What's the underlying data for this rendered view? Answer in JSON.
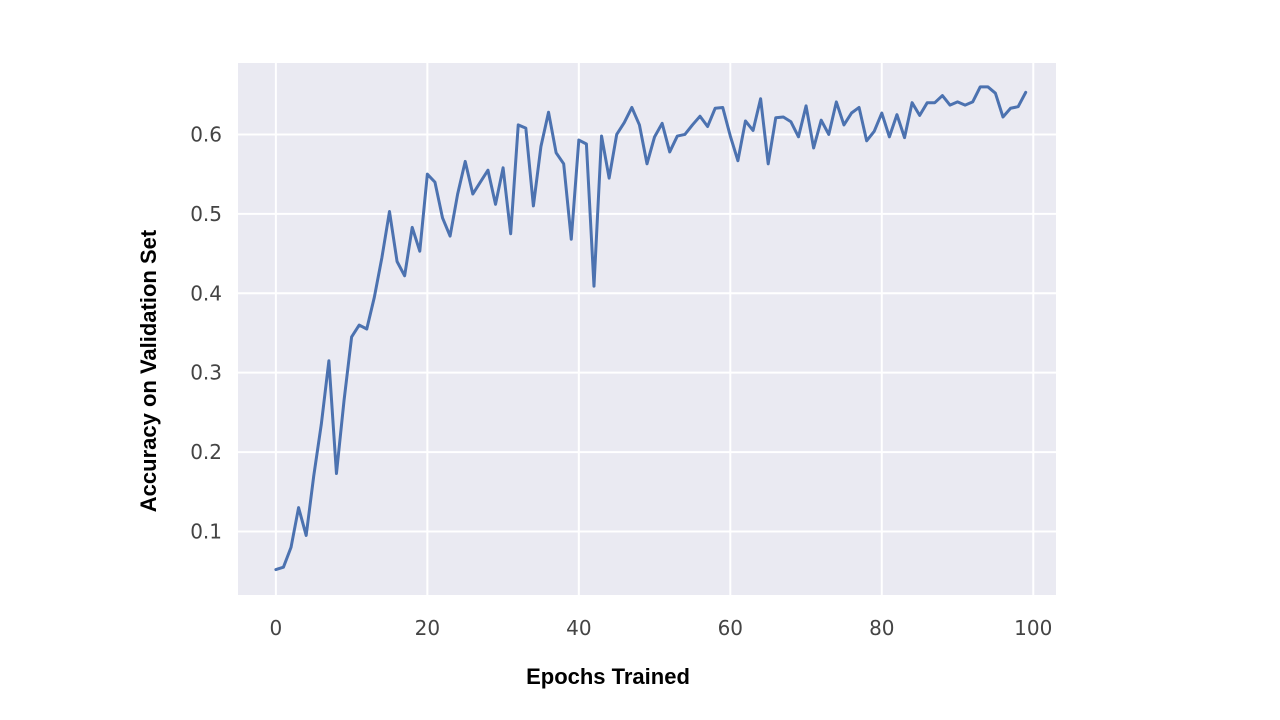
{
  "chart_data": {
    "type": "line",
    "title": "",
    "xlabel": "Epochs Trained",
    "ylabel": "Accuracy  on Validation Set",
    "xlim": [
      -5,
      103
    ],
    "ylim": [
      0.02,
      0.69
    ],
    "x_ticks": [
      0,
      20,
      40,
      60,
      80,
      100
    ],
    "x_tick_labels": [
      "0",
      "20",
      "40",
      "60",
      "80",
      "100"
    ],
    "y_ticks": [
      0.1,
      0.2,
      0.3,
      0.4,
      0.5,
      0.6
    ],
    "y_tick_labels": [
      "0.1",
      "0.2",
      "0.3",
      "0.4",
      "0.5",
      "0.6"
    ],
    "grid": true,
    "background_color": "#EAEAF2",
    "grid_color": "#FFFFFF",
    "line_color": "#4C72B0",
    "series": [
      {
        "values": [
          0.052,
          0.055,
          0.08,
          0.13,
          0.095,
          0.17,
          0.235,
          0.315,
          0.173,
          0.265,
          0.345,
          0.36,
          0.355,
          0.395,
          0.445,
          0.503,
          0.44,
          0.422,
          0.483,
          0.453,
          0.55,
          0.54,
          0.495,
          0.472,
          0.525,
          0.566,
          0.525,
          0.54,
          0.555,
          0.512,
          0.558,
          0.475,
          0.612,
          0.608,
          0.51,
          0.585,
          0.628,
          0.577,
          0.563,
          0.468,
          0.593,
          0.588,
          0.409,
          0.598,
          0.545,
          0.6,
          0.615,
          0.634,
          0.612,
          0.563,
          0.597,
          0.614,
          0.578,
          0.598,
          0.6,
          0.612,
          0.623,
          0.61,
          0.633,
          0.634,
          0.598,
          0.567,
          0.617,
          0.605,
          0.645,
          0.563,
          0.621,
          0.622,
          0.616,
          0.597,
          0.636,
          0.583,
          0.618,
          0.6,
          0.641,
          0.612,
          0.627,
          0.634,
          0.592,
          0.604,
          0.627,
          0.597,
          0.625,
          0.596,
          0.64,
          0.624,
          0.64,
          0.64,
          0.649,
          0.637,
          0.641,
          0.637,
          0.641,
          0.66,
          0.66,
          0.652,
          0.622,
          0.633,
          0.635,
          0.653
        ]
      }
    ]
  }
}
